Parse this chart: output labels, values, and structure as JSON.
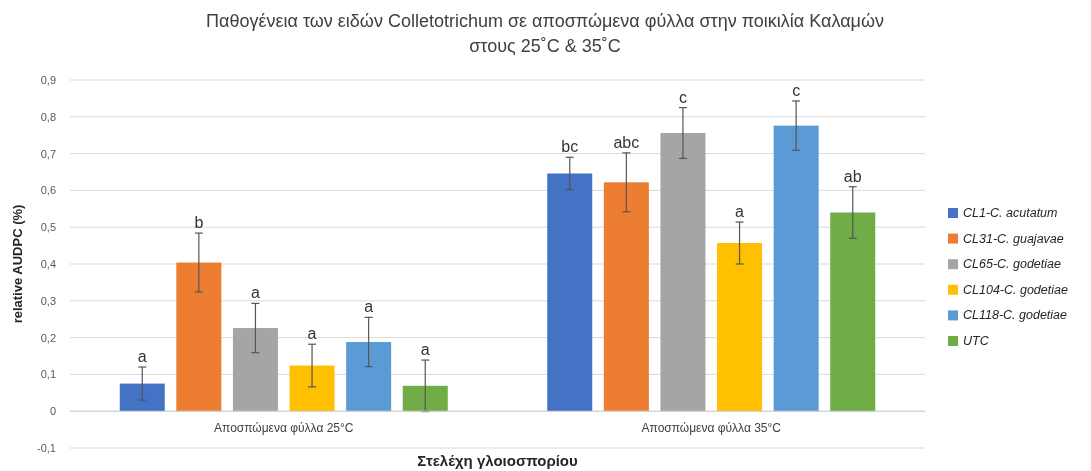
{
  "chart_data": {
    "type": "bar",
    "title": "Παθογένεια των ειδών Colletotrichum σε αποσπώμενα φύλλα στην ποικιλία Καλαμών στους 25˚C & 35˚C",
    "xlabel": "Στελέχη γλοιοσπορίου",
    "ylabel": "relative AUDPC (%)",
    "categories": [
      "Αποσπώμενα φύλλα 25°C",
      "Αποσπώμενα φύλλα 35°C"
    ],
    "series": [
      {
        "name": "CL1-C. acutatum",
        "color": "#4472c4",
        "values": [
          0.075,
          0.646
        ],
        "errors": [
          0.045,
          0.044
        ]
      },
      {
        "name": "CL31-C. guajavae",
        "color": "#ed7d31",
        "values": [
          0.404,
          0.622
        ],
        "errors": [
          0.08,
          0.08
        ]
      },
      {
        "name": "CL65-C. godetiae",
        "color": "#a5a5a5",
        "values": [
          0.226,
          0.756
        ],
        "errors": [
          0.067,
          0.069
        ]
      },
      {
        "name": "CL104-C. godetiae",
        "color": "#ffc000",
        "values": [
          0.124,
          0.457
        ],
        "errors": [
          0.058,
          0.057
        ]
      },
      {
        "name": "CL118-C. godetiae",
        "color": "#5b9bd5",
        "values": [
          0.188,
          0.776
        ],
        "errors": [
          0.067,
          0.067
        ]
      },
      {
        "name": "UTC",
        "color": "#70ad47",
        "values": [
          0.069,
          0.54
        ],
        "errors": [
          0.07,
          0.07
        ]
      }
    ],
    "ylim": [
      -0.1,
      0.9
    ],
    "yticks": [
      {
        "value": -0.1,
        "label": "-0,1"
      },
      0,
      {
        "value": 0.1,
        "label": "0,1"
      },
      {
        "value": 0.2,
        "label": "0,2"
      },
      {
        "value": 0.3,
        "label": "0,3"
      },
      {
        "value": 0.4,
        "label": "0,4"
      },
      {
        "value": 0.5,
        "label": "0,5"
      },
      {
        "value": 0.6,
        "label": "0,6"
      },
      {
        "value": 0.7,
        "label": "0,7"
      },
      {
        "value": 0.8,
        "label": "0,8"
      },
      {
        "value": 0.9,
        "label": "0,9"
      }
    ],
    "grid": "y",
    "legend": "right",
    "annotations": [
      "a",
      "b",
      "a",
      "a",
      "a",
      "a",
      "bc",
      "abc",
      "c",
      "a",
      "c",
      "ab"
    ]
  }
}
